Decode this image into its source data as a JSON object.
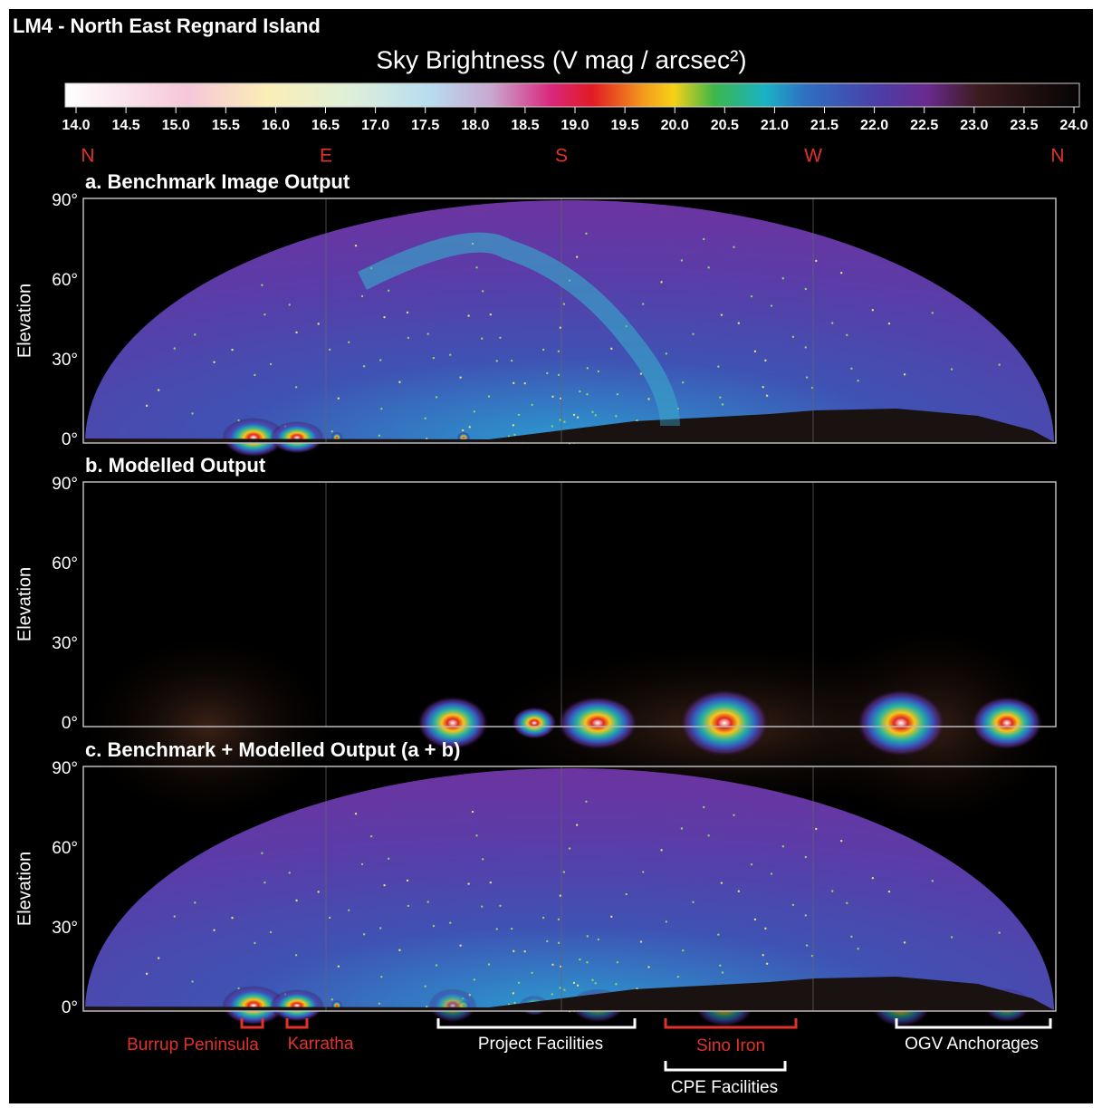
{
  "header": {
    "title": "LM4 - North East Regnard Island"
  },
  "colorbar": {
    "label": "Sky Brightness (V mag / arcsec²)",
    "ticks": [
      "14.0",
      "14.5",
      "15.0",
      "15.5",
      "16.0",
      "16.5",
      "17.0",
      "17.5",
      "18.0",
      "18.5",
      "19.0",
      "19.5",
      "20.0",
      "20.5",
      "21.0",
      "21.5",
      "22.0",
      "22.5",
      "23.0",
      "23.5",
      "24.0"
    ]
  },
  "directions": [
    "N",
    "E",
    "S",
    "W",
    "N"
  ],
  "panels": [
    {
      "label": "a. Benchmark Image Output",
      "y_axis_label": "Elevation",
      "y_ticks": [
        "90°",
        "60°",
        "30°",
        "0°"
      ]
    },
    {
      "label": "b. Modelled Output",
      "y_axis_label": "Elevation",
      "y_ticks": [
        "90°",
        "60°",
        "30°",
        "0°"
      ]
    },
    {
      "label": "c. Benchmark + Modelled Output (a + b)",
      "y_axis_label": "Elevation",
      "y_ticks": [
        "90°",
        "60°",
        "30°",
        "0°"
      ]
    }
  ],
  "annotations": [
    {
      "label": "Burrup Peninsula"
    },
    {
      "label": "Karratha"
    },
    {
      "label": "Project Facilities"
    },
    {
      "label": "Sino Iron"
    },
    {
      "label": "CPE Facilities"
    },
    {
      "label": "OGV Anchorages"
    }
  ]
}
